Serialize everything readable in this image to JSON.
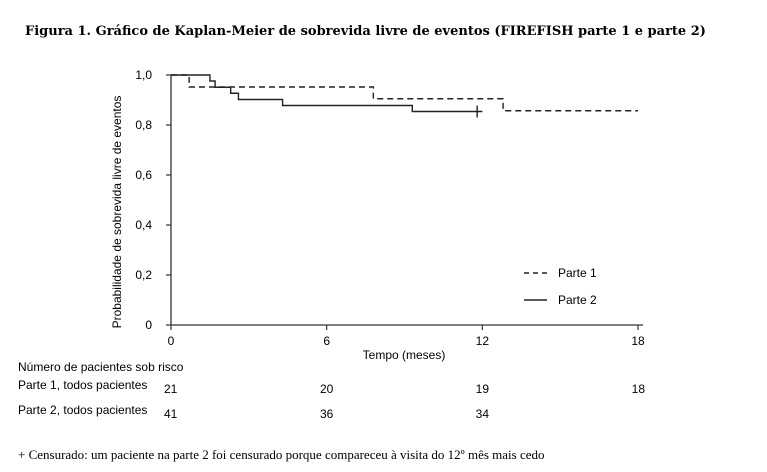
{
  "title": "Figura 1. Gráfico de Kaplan-Meier de sobrevida livre de eventos (FIREFISH parte 1 e parte 2)",
  "footnote": "+ Censurado: um paciente na parte 2 foi censurado porque compareceu à visita do 12º mês mais cedo",
  "chart_data": {
    "type": "line",
    "title": "",
    "xlabel": "Tempo (meses)",
    "ylabel": "Probabilidade de sobrevida livre de eventos",
    "xlim": [
      0,
      18
    ],
    "ylim": [
      0,
      1.0
    ],
    "x_ticks": [
      "0",
      "6",
      "12",
      "18"
    ],
    "y_ticks": [
      "0",
      "0,2",
      "0,4",
      "0,6",
      "0,8",
      "1,0"
    ],
    "grid": false,
    "legend_position": "bottom-right",
    "series": [
      {
        "name": "Parte 1",
        "style": "dashed",
        "step": true,
        "x": [
          0,
          0.7,
          7.8,
          12.8,
          18
        ],
        "y": [
          1.0,
          0.952,
          0.905,
          0.857,
          0.857
        ]
      },
      {
        "name": "Parte 2",
        "style": "solid",
        "step": true,
        "x": [
          0,
          1.5,
          1.7,
          2.3,
          2.6,
          4.3,
          9.3,
          12
        ],
        "y": [
          1.0,
          0.976,
          0.951,
          0.927,
          0.902,
          0.878,
          0.854,
          0.854
        ],
        "censor": [
          {
            "x": 11.8,
            "y": 0.854
          }
        ]
      }
    ],
    "risk_table": {
      "header": "Número de pacientes sob risco",
      "rows": [
        {
          "label": "Parte 1, todos pacientes",
          "values": [
            "21",
            "20",
            "19",
            "18"
          ],
          "x": [
            0,
            6,
            12,
            18
          ]
        },
        {
          "label": "Parte 2, todos pacientes",
          "values": [
            "41",
            "36",
            "34"
          ],
          "x": [
            0,
            6,
            12
          ]
        }
      ]
    }
  }
}
